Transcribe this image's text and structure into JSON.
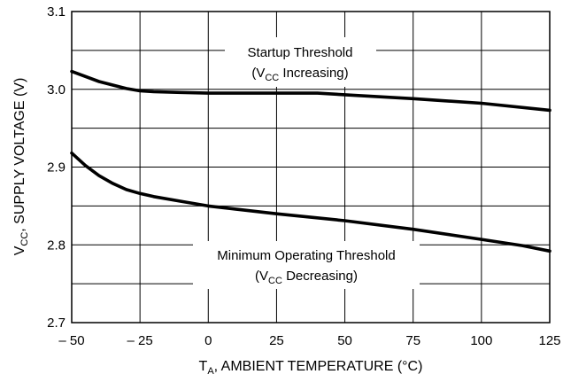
{
  "chart_data": {
    "type": "line",
    "title": "",
    "xlabel": {
      "main": "T",
      "sub": "A",
      "rest": ", AMBIENT TEMPERATURE (°C)"
    },
    "ylabel": {
      "main": "V",
      "sub": "CC",
      "rest": ", SUPPLY VOLTAGE (V)"
    },
    "xlim": [
      -50,
      125
    ],
    "ylim": [
      2.7,
      3.1
    ],
    "xticks": [
      -50,
      -25,
      0,
      25,
      50,
      75,
      100,
      125
    ],
    "xtick_labels": [
      "– 50",
      "– 25",
      "0",
      "25",
      "50",
      "75",
      "100",
      "125"
    ],
    "yticks": [
      2.7,
      2.8,
      2.9,
      3.0,
      3.1
    ],
    "ytick_labels": [
      "2.7",
      "2.8",
      "2.9",
      "3.0",
      "3.1"
    ],
    "grid": true,
    "series": [
      {
        "name": "Startup Threshold",
        "x": [
          -50,
          -40,
          -30,
          -25,
          -20,
          -10,
          0,
          10,
          25,
          40,
          50,
          75,
          100,
          125
        ],
        "y": [
          3.023,
          3.01,
          3.001,
          2.998,
          2.997,
          2.996,
          2.995,
          2.995,
          2.995,
          2.995,
          2.993,
          2.988,
          2.982,
          2.973
        ]
      },
      {
        "name": "Minimum Operating Threshold",
        "x": [
          -50,
          -45,
          -40,
          -35,
          -30,
          -25,
          -20,
          -10,
          0,
          10,
          25,
          50,
          75,
          100,
          115,
          125
        ],
        "y": [
          2.918,
          2.902,
          2.889,
          2.879,
          2.871,
          2.866,
          2.862,
          2.856,
          2.85,
          2.846,
          2.84,
          2.831,
          2.82,
          2.807,
          2.799,
          2.792
        ]
      }
    ],
    "annotations": [
      {
        "line1": "Startup Threshold",
        "line2_pre": "(V",
        "line2_sub": "CC",
        "line2_post": " Increasing)"
      },
      {
        "line1": "Minimum Operating Threshold",
        "line2_pre": "(V",
        "line2_sub": "CC",
        "line2_post": " Decreasing)"
      }
    ]
  }
}
